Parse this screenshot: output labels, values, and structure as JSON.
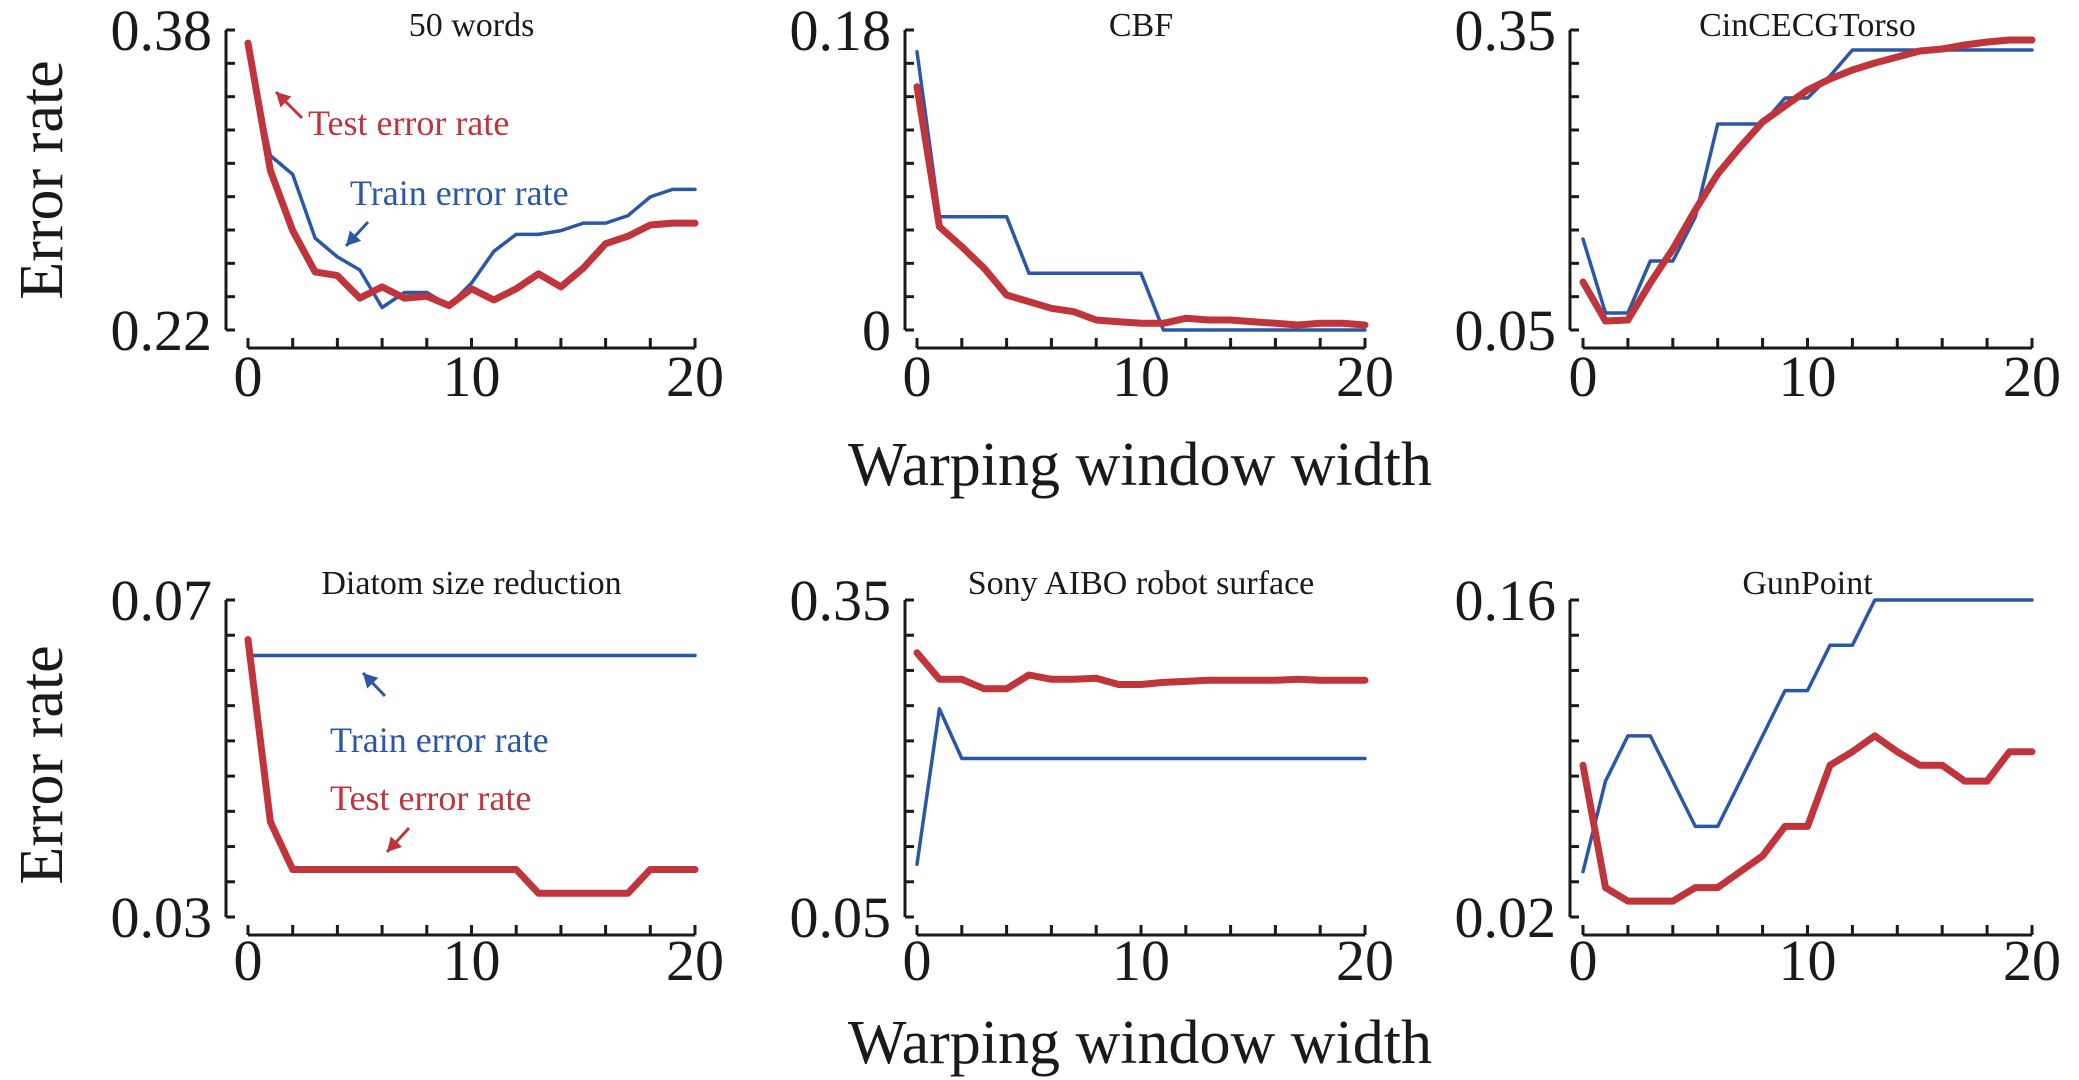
{
  "figure": {
    "xlabel": "Warping window width",
    "ylabel": "Error rate"
  },
  "colors": {
    "test": "#c0343c",
    "train": "#2b57a8",
    "axis": "#1a1a1a"
  },
  "chart_data": [
    {
      "type": "line",
      "title": "50 words",
      "xlabel": "Warping window width",
      "ylabel": "Error rate",
      "xlim": [
        0,
        20
      ],
      "ylim": [
        0.22,
        0.38
      ],
      "x_ticks": [
        "0",
        "10",
        "20"
      ],
      "y_ticks": [
        "0.22",
        "0.38"
      ],
      "x": [
        0,
        1,
        2,
        3,
        4,
        5,
        6,
        7,
        8,
        9,
        10,
        11,
        12,
        13,
        14,
        15,
        16,
        17,
        18,
        19,
        20
      ],
      "series": [
        {
          "name": "Train error rate",
          "color": "#2b57a8",
          "values": [
            0.37,
            0.313,
            0.303,
            0.269,
            0.259,
            0.252,
            0.232,
            0.24,
            0.24,
            0.233,
            0.245,
            0.262,
            0.271,
            0.271,
            0.273,
            0.277,
            0.277,
            0.281,
            0.291,
            0.295,
            0.295
          ]
        },
        {
          "name": "Test error rate",
          "color": "#c0343c",
          "values": [
            0.373,
            0.305,
            0.273,
            0.251,
            0.249,
            0.237,
            0.243,
            0.237,
            0.238,
            0.233,
            0.242,
            0.236,
            0.242,
            0.25,
            0.243,
            0.253,
            0.266,
            0.27,
            0.276,
            0.277,
            0.277
          ]
        }
      ],
      "annotations": [
        {
          "text": "Test error rate",
          "color": "#c0343c"
        },
        {
          "text": "Train error rate",
          "color": "#2b57a8"
        }
      ]
    },
    {
      "type": "line",
      "title": "CBF",
      "xlabel": "Warping window width",
      "ylabel": "Error rate",
      "xlim": [
        0,
        20
      ],
      "ylim": [
        0,
        0.18
      ],
      "x_ticks": [
        "0",
        "10",
        "20"
      ],
      "y_ticks": [
        "0",
        "0.18"
      ],
      "x": [
        0,
        1,
        2,
        3,
        4,
        5,
        6,
        7,
        8,
        9,
        10,
        11,
        12,
        13,
        14,
        15,
        16,
        17,
        18,
        19,
        20
      ],
      "series": [
        {
          "name": "Train error rate",
          "color": "#2b57a8",
          "values": [
            0.167,
            0.068,
            0.068,
            0.068,
            0.068,
            0.034,
            0.034,
            0.034,
            0.034,
            0.034,
            0.034,
            0.0,
            0.0,
            0.0,
            0.0,
            0.0,
            0.0,
            0.0,
            0.0,
            0.0,
            0.0
          ]
        },
        {
          "name": "Test error rate",
          "color": "#c0343c",
          "values": [
            0.146,
            0.062,
            0.05,
            0.037,
            0.021,
            0.017,
            0.013,
            0.011,
            0.006,
            0.005,
            0.004,
            0.004,
            0.007,
            0.006,
            0.006,
            0.005,
            0.004,
            0.003,
            0.004,
            0.004,
            0.003
          ]
        }
      ]
    },
    {
      "type": "line",
      "title": "CinCECGTorso",
      "xlabel": "Warping window width",
      "ylabel": "Error rate",
      "xlim": [
        0,
        20
      ],
      "ylim": [
        0.05,
        0.35
      ],
      "x_ticks": [
        "0",
        "10",
        "20"
      ],
      "y_ticks": [
        "0.05",
        "0.35"
      ],
      "x": [
        0,
        1,
        2,
        3,
        4,
        5,
        6,
        7,
        8,
        9,
        10,
        11,
        12,
        13,
        14,
        15,
        16,
        17,
        18,
        19,
        20
      ],
      "series": [
        {
          "name": "Train error rate",
          "color": "#2b57a8",
          "values": [
            0.141,
            0.067,
            0.067,
            0.119,
            0.119,
            0.163,
            0.256,
            0.256,
            0.256,
            0.282,
            0.282,
            0.304,
            0.33,
            0.33,
            0.33,
            0.33,
            0.33,
            0.33,
            0.33,
            0.33,
            0.33
          ]
        },
        {
          "name": "Test error rate",
          "color": "#c0343c",
          "values": [
            0.098,
            0.059,
            0.06,
            0.097,
            0.131,
            0.17,
            0.206,
            0.233,
            0.258,
            0.274,
            0.29,
            0.301,
            0.31,
            0.317,
            0.323,
            0.329,
            0.331,
            0.335,
            0.338,
            0.34,
            0.34
          ]
        }
      ]
    },
    {
      "type": "line",
      "title": "Diatom size reduction",
      "xlabel": "Warping window width",
      "ylabel": "Error rate",
      "xlim": [
        0,
        20
      ],
      "ylim": [
        0.03,
        0.07
      ],
      "x_ticks": [
        "0",
        "10",
        "20"
      ],
      "y_ticks": [
        "0.03",
        "0.07"
      ],
      "x": [
        0,
        1,
        2,
        3,
        4,
        5,
        6,
        7,
        8,
        9,
        10,
        11,
        12,
        13,
        14,
        15,
        16,
        17,
        18,
        19,
        20
      ],
      "series": [
        {
          "name": "Train error rate",
          "color": "#2b57a8",
          "values": [
            0.063,
            0.063,
            0.063,
            0.063,
            0.063,
            0.063,
            0.063,
            0.063,
            0.063,
            0.063,
            0.063,
            0.063,
            0.063,
            0.063,
            0.063,
            0.063,
            0.063,
            0.063,
            0.063,
            0.063,
            0.063
          ]
        },
        {
          "name": "Test error rate",
          "color": "#c0343c",
          "values": [
            0.065,
            0.042,
            0.036,
            0.036,
            0.036,
            0.036,
            0.036,
            0.036,
            0.036,
            0.036,
            0.036,
            0.036,
            0.036,
            0.033,
            0.033,
            0.033,
            0.033,
            0.033,
            0.036,
            0.036,
            0.036
          ]
        }
      ],
      "annotations": [
        {
          "text": "Train error rate",
          "color": "#2b57a8"
        },
        {
          "text": "Test error rate",
          "color": "#c0343c"
        }
      ]
    },
    {
      "type": "line",
      "title": "Sony AIBO robot surface",
      "xlabel": "Warping window width",
      "ylabel": "Error rate",
      "xlim": [
        0,
        20
      ],
      "ylim": [
        0.05,
        0.35
      ],
      "x_ticks": [
        "0",
        "10",
        "20"
      ],
      "y_ticks": [
        "0.05",
        "0.35"
      ],
      "x": [
        0,
        1,
        2,
        3,
        4,
        5,
        6,
        7,
        8,
        9,
        10,
        11,
        12,
        13,
        14,
        15,
        16,
        17,
        18,
        19,
        20
      ],
      "series": [
        {
          "name": "Train error rate",
          "color": "#2b57a8",
          "values": [
            0.1,
            0.247,
            0.2,
            0.2,
            0.2,
            0.2,
            0.2,
            0.2,
            0.2,
            0.2,
            0.2,
            0.2,
            0.2,
            0.2,
            0.2,
            0.2,
            0.2,
            0.2,
            0.2,
            0.2,
            0.2
          ]
        },
        {
          "name": "Test error rate",
          "color": "#c0343c",
          "values": [
            0.3,
            0.275,
            0.275,
            0.266,
            0.266,
            0.279,
            0.275,
            0.275,
            0.276,
            0.27,
            0.27,
            0.272,
            0.273,
            0.274,
            0.274,
            0.274,
            0.274,
            0.275,
            0.274,
            0.274,
            0.274
          ]
        }
      ]
    },
    {
      "type": "line",
      "title": "GunPoint",
      "xlabel": "Warping window width",
      "ylabel": "Error rate",
      "xlim": [
        0,
        20
      ],
      "ylim": [
        0.02,
        0.16
      ],
      "x_ticks": [
        "0",
        "10",
        "20"
      ],
      "y_ticks": [
        "0.02",
        "0.16"
      ],
      "x": [
        0,
        1,
        2,
        3,
        4,
        5,
        6,
        7,
        8,
        9,
        10,
        11,
        12,
        13,
        14,
        15,
        16,
        17,
        18,
        19,
        20
      ],
      "series": [
        {
          "name": "Train error rate",
          "color": "#2b57a8",
          "values": [
            0.04,
            0.08,
            0.1,
            0.1,
            0.08,
            0.06,
            0.06,
            0.08,
            0.1,
            0.12,
            0.12,
            0.14,
            0.14,
            0.16,
            0.16,
            0.16,
            0.16,
            0.16,
            0.16,
            0.16,
            0.16
          ]
        },
        {
          "name": "Test error rate",
          "color": "#c0343c",
          "values": [
            0.087,
            0.033,
            0.027,
            0.027,
            0.027,
            0.033,
            0.033,
            0.04,
            0.047,
            0.06,
            0.06,
            0.087,
            0.093,
            0.1,
            0.093,
            0.087,
            0.087,
            0.08,
            0.08,
            0.093,
            0.093
          ]
        }
      ]
    }
  ]
}
